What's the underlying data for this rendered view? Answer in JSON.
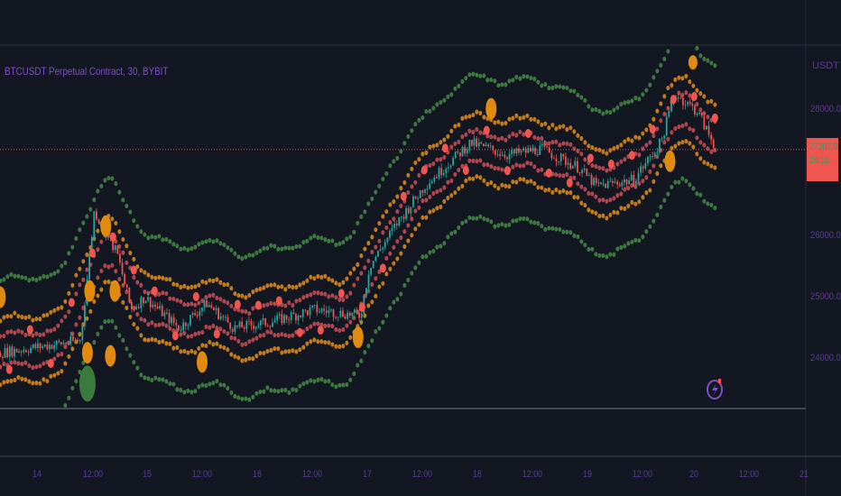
{
  "header": {
    "symbol_title": "BTCUSDT Perpetual Contract, 30, BYBIT"
  },
  "price_axis": {
    "unit": "USDT",
    "labels": [
      "28000.0",
      "26000.0",
      "25000.0",
      "24000.0"
    ],
    "last_price": "27387.9",
    "countdown": "24:16",
    "last_price_bg": "#f0554f"
  },
  "time_axis": {
    "labels": [
      "14",
      "12:00",
      "15",
      "12:00",
      "16",
      "12:00",
      "17",
      "12:00",
      "18",
      "12:00",
      "19",
      "12:00",
      "20",
      "12:00",
      "21"
    ]
  },
  "colors": {
    "background": "#131722",
    "up": "#26a69a",
    "down": "#ef5350",
    "band_inner": "#b5434a",
    "band_mid": "#c77a12",
    "band_outer": "#3a7a3d",
    "signal_orange": "#e08a10",
    "signal_red": "#f0554f",
    "signal_green": "#3a7a3d"
  },
  "icons": {
    "replay": "lightning-icon"
  },
  "chart_data": {
    "type": "candlestick",
    "timeframe": "30",
    "ylim": [
      23250,
      29000
    ],
    "last_price": 27387.9,
    "approx_price_path": [
      {
        "t": "13 16:00",
        "p": 24100
      },
      {
        "t": "14 09:30",
        "p": 24300
      },
      {
        "t": "14 12:30",
        "p": 26400
      },
      {
        "t": "14 17:30",
        "p": 25700
      },
      {
        "t": "14 20:30",
        "p": 24800
      },
      {
        "t": "14 23:30",
        "p": 25000
      },
      {
        "t": "15 07:00",
        "p": 24500
      },
      {
        "t": "15 13:00",
        "p": 24900
      },
      {
        "t": "15 19:00",
        "p": 24500
      },
      {
        "t": "16 03:00",
        "p": 24600
      },
      {
        "t": "16 12:30",
        "p": 24800
      },
      {
        "t": "16 22:30",
        "p": 24700
      },
      {
        "t": "17 00:30",
        "p": 25500
      },
      {
        "t": "17 06:30",
        "p": 26200
      },
      {
        "t": "17 12:30",
        "p": 26800
      },
      {
        "t": "17 22:30",
        "p": 27500
      },
      {
        "t": "18 06:30",
        "p": 27300
      },
      {
        "t": "18 14:00",
        "p": 27400
      },
      {
        "t": "18 22:00",
        "p": 27100
      },
      {
        "t": "19 02:00",
        "p": 26800
      },
      {
        "t": "19 10:00",
        "p": 26900
      },
      {
        "t": "19 16:00",
        "p": 27500
      },
      {
        "t": "19 19:00",
        "p": 28300
      },
      {
        "t": "20 00:00",
        "p": 28000
      },
      {
        "t": "20 04:00",
        "p": 27400
      }
    ],
    "signals": [
      {
        "t": "14 11:00",
        "p": 24100,
        "color": "orange",
        "size": "medium"
      },
      {
        "t": "14 11:00",
        "p": 23600,
        "color": "green",
        "size": "large"
      },
      {
        "t": "14 15:00",
        "p": 26150,
        "color": "orange",
        "size": "medium"
      },
      {
        "t": "14 17:00",
        "p": 25100,
        "color": "orange",
        "size": "medium"
      },
      {
        "t": "14 11:30",
        "p": 25100,
        "color": "orange",
        "size": "medium"
      },
      {
        "t": "13 16:00",
        "p": 25000,
        "color": "orange",
        "size": "medium"
      },
      {
        "t": "15 12:00",
        "p": 23950,
        "color": "orange",
        "size": "medium"
      },
      {
        "t": "14 16:00",
        "p": 24050,
        "color": "orange",
        "size": "medium"
      },
      {
        "t": "16 22:00",
        "p": 24350,
        "color": "orange",
        "size": "medium"
      },
      {
        "t": "18 03:00",
        "p": 28050,
        "color": "orange",
        "size": "medium"
      },
      {
        "t": "19 18:00",
        "p": 27200,
        "color": "orange",
        "size": "medium"
      },
      {
        "t": "19 23:00",
        "p": 28800,
        "color": "orange",
        "size": "small"
      }
    ]
  }
}
